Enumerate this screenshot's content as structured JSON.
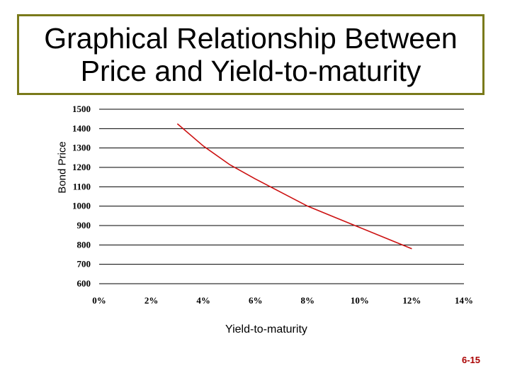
{
  "slide": {
    "title": "Graphical Relationship Between Price and Yield-to-maturity",
    "slide_number": "6-15"
  },
  "chart_data": {
    "type": "line",
    "xlabel": "Yield-to-maturity",
    "ylabel": "Bond Price",
    "xlim": [
      0,
      0.14
    ],
    "ylim": [
      600,
      1500
    ],
    "x_ticks": [
      0,
      0.02,
      0.04,
      0.06,
      0.08,
      0.1,
      0.12,
      0.14
    ],
    "x_tick_labels": [
      "0%",
      "2%",
      "4%",
      "6%",
      "8%",
      "10%",
      "12%",
      "14%"
    ],
    "y_ticks": [
      600,
      700,
      800,
      900,
      1000,
      1100,
      1200,
      1300,
      1400,
      1500
    ],
    "y_tick_labels": [
      "600",
      "700",
      "800",
      "900",
      "1000",
      "1100",
      "1200",
      "1300",
      "1400",
      "1500"
    ],
    "grid": "horizontal",
    "series": [
      {
        "color": "#cc1111",
        "x": [
          0.03,
          0.04,
          0.05,
          0.06,
          0.07,
          0.08,
          0.09,
          0.1,
          0.11,
          0.12
        ],
        "y": [
          1425,
          1310,
          1215,
          1140,
          1070,
          1000,
          945,
          890,
          835,
          780
        ]
      }
    ]
  }
}
